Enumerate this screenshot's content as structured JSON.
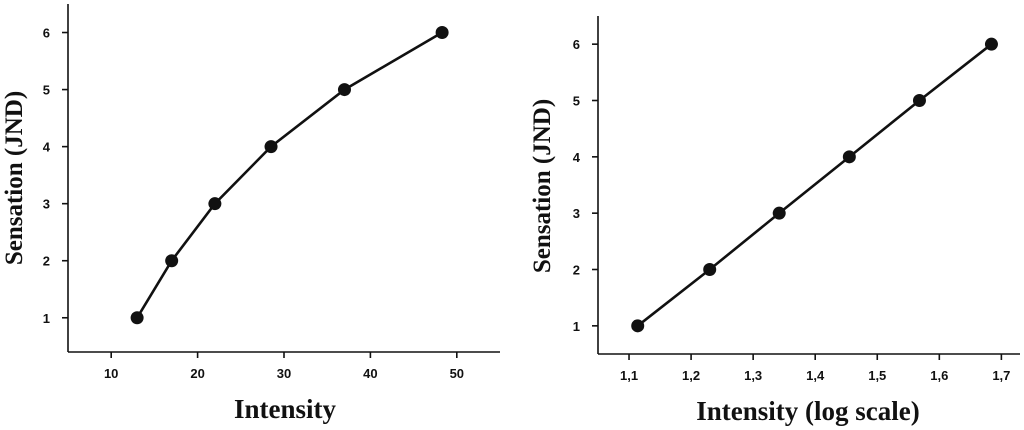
{
  "chart_data": [
    {
      "type": "line",
      "xlabel": "Intensity",
      "ylabel": "Sensation (JND)",
      "x": [
        13,
        17,
        22,
        28.5,
        37,
        48.3
      ],
      "y": [
        1,
        2,
        3,
        4,
        5,
        6
      ],
      "xlim": [
        5,
        55
      ],
      "ylim": [
        0.4,
        6.5
      ],
      "xticks": [
        "10",
        "20",
        "30",
        "40",
        "50"
      ],
      "yticks": [
        "1",
        "2",
        "3",
        "4",
        "5",
        "6"
      ],
      "grid": false,
      "series_color": "#111111"
    },
    {
      "type": "line",
      "xlabel": "Intensity (log scale)",
      "ylabel": "Sensation (JND)",
      "x": [
        1.114,
        1.23,
        1.342,
        1.455,
        1.568,
        1.684
      ],
      "y": [
        1,
        2,
        3,
        4,
        5,
        6
      ],
      "xlim": [
        1.05,
        1.73
      ],
      "ylim": [
        0.5,
        6.5
      ],
      "xticks": [
        "1,1",
        "1,2",
        "1,3",
        "1,4",
        "1,5",
        "1,6",
        "1,7"
      ],
      "yticks": [
        "1",
        "2",
        "3",
        "4",
        "5",
        "6"
      ],
      "grid": false,
      "series_color": "#111111"
    }
  ]
}
